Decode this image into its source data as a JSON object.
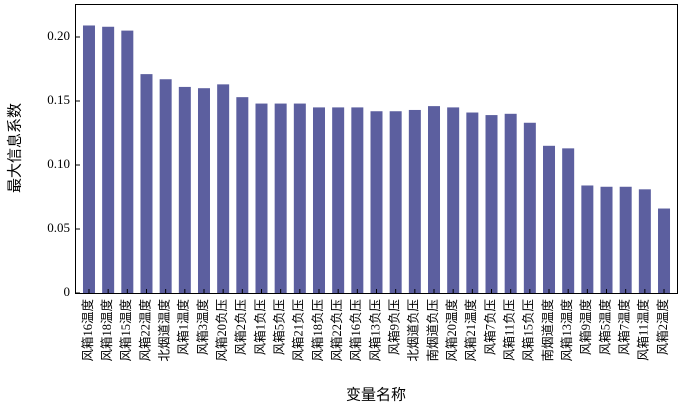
{
  "chart_data": {
    "type": "bar",
    "x_label": "变量名称",
    "y_label": "最大信息系数",
    "categories": [
      "风箱16温度",
      "风箱18温度",
      "风箱15温度",
      "风箱22温度",
      "北烟道温度",
      "风箱1温度",
      "风箱3温度",
      "风箱20负压",
      "风箱2负压",
      "风箱1负压",
      "风箱5负压",
      "风箱21负压",
      "风箱18负压",
      "风箱22负压",
      "风箱16负压",
      "风箱13负压",
      "风箱9负压",
      "北烟道负压",
      "南烟道负压",
      "风箱20温度",
      "风箱21温度",
      "风箱7负压",
      "风箱11负压",
      "风箱15负压",
      "南烟道温度",
      "风箱13温度",
      "风箱9温度",
      "风箱5温度",
      "风箱7温度",
      "风箱11温度",
      "风箱2温度"
    ],
    "values": [
      0.209,
      0.208,
      0.205,
      0.171,
      0.167,
      0.161,
      0.16,
      0.163,
      0.153,
      0.148,
      0.148,
      0.148,
      0.145,
      0.145,
      0.145,
      0.142,
      0.142,
      0.143,
      0.146,
      0.145,
      0.141,
      0.139,
      0.14,
      0.133,
      0.115,
      0.113,
      0.084,
      0.083,
      0.083,
      0.081,
      0.066
    ],
    "color": "#5c5f9f",
    "ylim": [
      0,
      0.225
    ],
    "yticks": [
      0,
      0.05,
      {
        "value": 0.1,
        "label": "0.10"
      },
      0.15,
      {
        "value": 0.2,
        "label": "0.20"
      }
    ]
  }
}
